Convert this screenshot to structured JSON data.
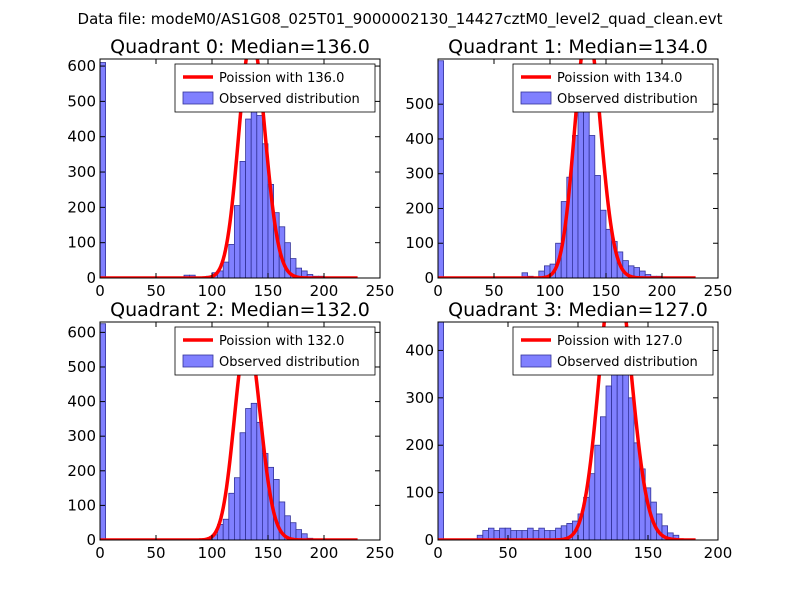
{
  "figure": {
    "suptitle": "Data file: modeM0/AS1G08_025T01_9000002130_14427cztM0_level2_quad_clean.evt"
  },
  "colors": {
    "poisson_line": "#ff0000",
    "bar_fill": "#8080ff",
    "bar_edge": "#333399"
  },
  "chart_data": [
    {
      "type": "bar",
      "title": "Quadrant 0: Median=136.0",
      "xlim": [
        0,
        250
      ],
      "ylim": [
        0,
        620
      ],
      "xticks": [
        0,
        50,
        100,
        150,
        200,
        250
      ],
      "yticks": [
        0,
        100,
        200,
        300,
        400,
        500,
        600
      ],
      "legend": [
        "Poission with 136.0",
        "Observed distribution"
      ],
      "median": 136.0,
      "bin_width": 5,
      "bins": [
        [
          0,
          610
        ],
        [
          75,
          8
        ],
        [
          80,
          8
        ],
        [
          95,
          5
        ],
        [
          100,
          15
        ],
        [
          105,
          20
        ],
        [
          110,
          45
        ],
        [
          115,
          95
        ],
        [
          120,
          205
        ],
        [
          125,
          330
        ],
        [
          130,
          450
        ],
        [
          135,
          520
        ],
        [
          140,
          460
        ],
        [
          145,
          380
        ],
        [
          150,
          265
        ],
        [
          155,
          185
        ],
        [
          160,
          145
        ],
        [
          165,
          100
        ],
        [
          170,
          55
        ],
        [
          175,
          28
        ],
        [
          180,
          20
        ],
        [
          185,
          10
        ],
        [
          190,
          5
        ],
        [
          195,
          5
        ],
        [
          200,
          3
        ]
      ]
    },
    {
      "type": "bar",
      "title": "Quadrant 1: Median=134.0",
      "xlim": [
        0,
        250
      ],
      "ylim": [
        0,
        630
      ],
      "xticks": [
        0,
        50,
        100,
        150,
        200,
        250
      ],
      "yticks": [
        0,
        100,
        200,
        300,
        400,
        500
      ],
      "legend": [
        "Poission with 134.0",
        "Observed distribution"
      ],
      "median": 134.0,
      "bin_width": 5,
      "bins": [
        [
          0,
          625
        ],
        [
          75,
          15
        ],
        [
          80,
          5
        ],
        [
          90,
          20
        ],
        [
          95,
          35
        ],
        [
          100,
          40
        ],
        [
          105,
          100
        ],
        [
          110,
          220
        ],
        [
          115,
          290
        ],
        [
          120,
          410
        ],
        [
          125,
          500
        ],
        [
          130,
          500
        ],
        [
          135,
          410
        ],
        [
          140,
          295
        ],
        [
          145,
          195
        ],
        [
          150,
          140
        ],
        [
          155,
          105
        ],
        [
          160,
          75
        ],
        [
          165,
          50
        ],
        [
          170,
          35
        ],
        [
          175,
          30
        ],
        [
          180,
          20
        ],
        [
          185,
          10
        ],
        [
          190,
          5
        ],
        [
          195,
          5
        ],
        [
          200,
          3
        ]
      ]
    },
    {
      "type": "bar",
      "title": "Quadrant 2: Median=132.0",
      "xlim": [
        0,
        250
      ],
      "ylim": [
        0,
        630
      ],
      "xticks": [
        0,
        50,
        100,
        150,
        200,
        250
      ],
      "yticks": [
        0,
        100,
        200,
        300,
        400,
        500,
        600
      ],
      "legend": [
        "Poission with 132.0",
        "Observed distribution"
      ],
      "median": 132.0,
      "bin_width": 5,
      "bins": [
        [
          0,
          625
        ],
        [
          95,
          5
        ],
        [
          100,
          15
        ],
        [
          105,
          45
        ],
        [
          110,
          60
        ],
        [
          115,
          135
        ],
        [
          120,
          180
        ],
        [
          125,
          310
        ],
        [
          130,
          380
        ],
        [
          135,
          395
        ],
        [
          140,
          340
        ],
        [
          145,
          250
        ],
        [
          150,
          210
        ],
        [
          155,
          175
        ],
        [
          160,
          110
        ],
        [
          165,
          70
        ],
        [
          170,
          50
        ],
        [
          175,
          30
        ],
        [
          180,
          18
        ],
        [
          185,
          5
        ],
        [
          190,
          3
        ]
      ]
    },
    {
      "type": "bar",
      "title": "Quadrant 3: Median=127.0",
      "xlim": [
        0,
        200
      ],
      "ylim": [
        0,
        460
      ],
      "xticks": [
        0,
        50,
        100,
        150,
        200
      ],
      "yticks": [
        0,
        100,
        200,
        300,
        400
      ],
      "legend": [
        "Poission with 127.0",
        "Observed distribution"
      ],
      "median": 127.0,
      "bin_width": 4,
      "bins": [
        [
          0,
          460
        ],
        [
          28,
          10
        ],
        [
          32,
          20
        ],
        [
          36,
          25
        ],
        [
          40,
          20
        ],
        [
          44,
          25
        ],
        [
          48,
          25
        ],
        [
          52,
          20
        ],
        [
          56,
          20
        ],
        [
          60,
          20
        ],
        [
          64,
          25
        ],
        [
          68,
          20
        ],
        [
          72,
          25
        ],
        [
          76,
          20
        ],
        [
          80,
          20
        ],
        [
          84,
          25
        ],
        [
          88,
          30
        ],
        [
          92,
          35
        ],
        [
          96,
          40
        ],
        [
          100,
          55
        ],
        [
          104,
          90
        ],
        [
          108,
          140
        ],
        [
          112,
          200
        ],
        [
          116,
          260
        ],
        [
          120,
          325
        ],
        [
          124,
          415
        ],
        [
          128,
          435
        ],
        [
          132,
          375
        ],
        [
          136,
          300
        ],
        [
          140,
          205
        ],
        [
          144,
          150
        ],
        [
          148,
          110
        ],
        [
          152,
          80
        ],
        [
          156,
          55
        ],
        [
          160,
          30
        ],
        [
          164,
          15
        ],
        [
          168,
          10
        ]
      ]
    }
  ]
}
